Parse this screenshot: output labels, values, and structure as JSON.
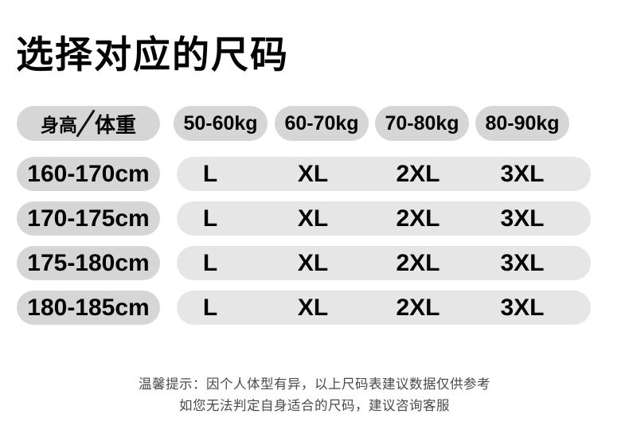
{
  "title": "选择对应的尺码",
  "table": {
    "corner": {
      "height_label": "身高",
      "weight_label": "体重"
    },
    "weight_headers": [
      "50-60kg",
      "60-70kg",
      "70-80kg",
      "80-90kg"
    ],
    "rows": [
      {
        "height": "160-170cm",
        "sizes": [
          "L",
          "XL",
          "2XL",
          "3XL"
        ]
      },
      {
        "height": "170-175cm",
        "sizes": [
          "L",
          "XL",
          "2XL",
          "3XL"
        ]
      },
      {
        "height": "175-180cm",
        "sizes": [
          "L",
          "XL",
          "2XL",
          "3XL"
        ]
      },
      {
        "height": "180-185cm",
        "sizes": [
          "L",
          "XL",
          "2XL",
          "3XL"
        ]
      }
    ]
  },
  "footer": {
    "line1": "温馨提示：因个人体型有异，以上尺码表建议数据仅供参考",
    "line2": "如您无法判定自身适合的尺码，建议咨询客服"
  },
  "colors": {
    "header_pill_bg": "#d6d6d6",
    "row_label_pill_bg": "#d6d6d6",
    "sizes_pill_bg": "#e6e6e6",
    "text": "#040404",
    "footer_text": "#4a4a4a",
    "background": "#ffffff"
  }
}
